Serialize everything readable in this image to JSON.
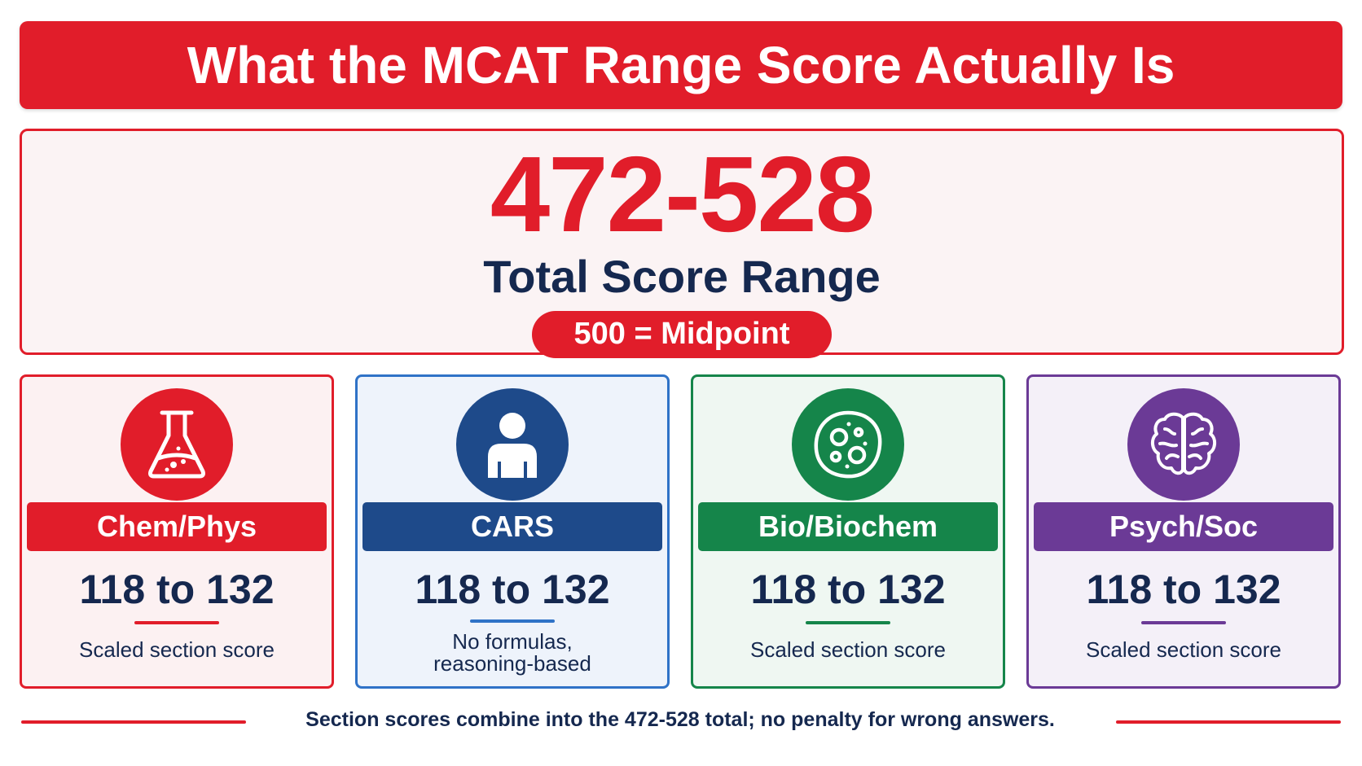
{
  "title": "What the MCAT Range Score Actually Is",
  "hero": {
    "range": "472-528",
    "label": "Total Score Range",
    "midpoint": "500 = Midpoint"
  },
  "cards": [
    {
      "name": "Chem/Phys",
      "score": "118 to 132",
      "desc_lines": [
        "Scaled section score"
      ],
      "icon": "flask-icon",
      "color": "#e11d2a",
      "bg": "#fcf1f2"
    },
    {
      "name": "CARS",
      "score": "118 to 132",
      "desc_lines": [
        "No formulas,",
        "reasoning-based"
      ],
      "icon": "person-icon",
      "color": "#1e4a8a",
      "bg": "#eef3fb"
    },
    {
      "name": "Bio/Biochem",
      "score": "118 to 132",
      "desc_lines": [
        "Scaled section score"
      ],
      "icon": "cell-icon",
      "color": "#15854a",
      "bg": "#eff7f2"
    },
    {
      "name": "Psych/Soc",
      "score": "118 to 132",
      "desc_lines": [
        "Scaled section score"
      ],
      "icon": "brain-icon",
      "color": "#6b3a96",
      "bg": "#f4f0f8"
    }
  ],
  "footer": "Section scores combine into the 472-528 total; no penalty for wrong answers."
}
